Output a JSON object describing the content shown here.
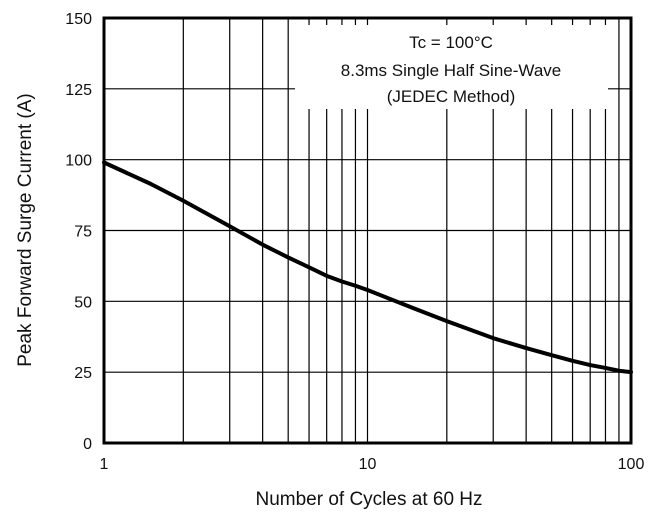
{
  "chart_data": {
    "type": "line",
    "title": "",
    "xlabel": "Number of Cycles at 60 Hz",
    "ylabel": "Peak Forward Surge Current (A)",
    "xscale": "log",
    "xlim": [
      1,
      100
    ],
    "ylim": [
      0,
      150
    ],
    "x_ticks": [
      "1",
      "10",
      "100"
    ],
    "y_ticks": [
      "0",
      "25",
      "50",
      "75",
      "100",
      "125",
      "150"
    ],
    "grid": true,
    "annotation": {
      "lines": [
        "Tc = 100°C",
        "8.3ms Single Half Sine-Wave",
        "(JEDEC Method)"
      ],
      "placement": "top-right"
    },
    "series": [
      {
        "x": [
          1,
          1.5,
          2,
          3,
          4,
          5,
          6,
          7,
          8,
          9,
          10,
          15,
          20,
          30,
          40,
          50,
          60,
          70,
          80,
          90,
          100
        ],
        "y": [
          99,
          91.5,
          85.5,
          76.5,
          70,
          65.5,
          62,
          59,
          57,
          55.5,
          54,
          47.5,
          43,
          37,
          33.5,
          31,
          29,
          27.5,
          26.5,
          25.5,
          25
        ]
      }
    ],
    "colors": {
      "axis": "#000000",
      "grid": "#000000",
      "line": "#000000",
      "background": "#ffffff"
    }
  }
}
